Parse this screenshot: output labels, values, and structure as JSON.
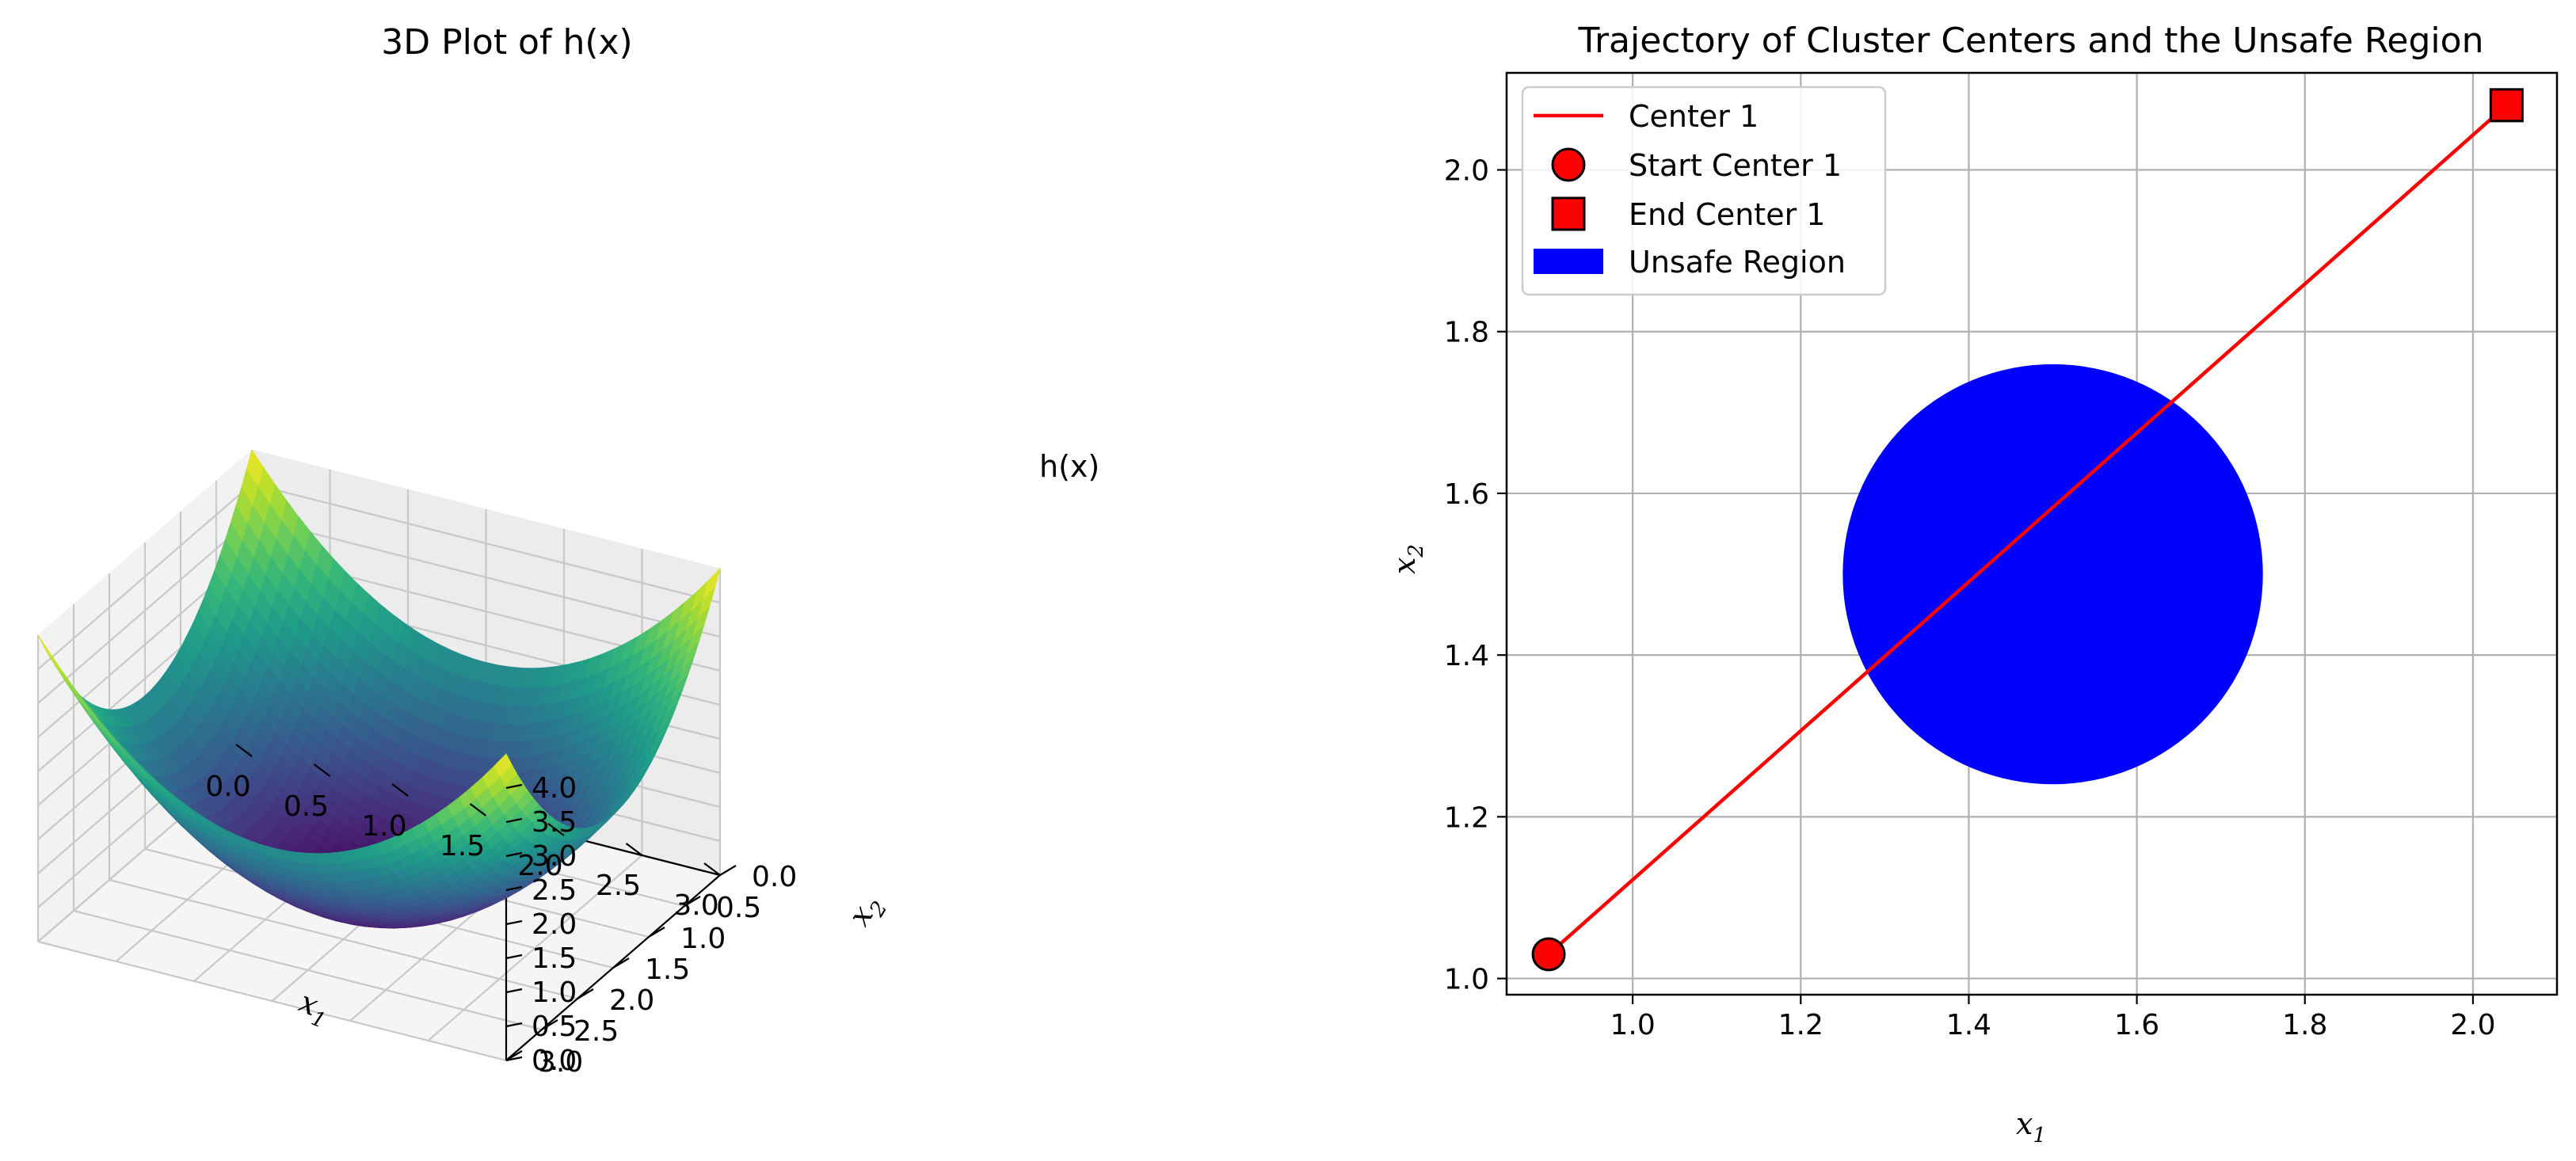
{
  "chart_data": [
    {
      "type": "surface",
      "title": "3D Plot of h(x)",
      "function": "(x1 - 1.5)^2 + (x2 - 1.5)^2",
      "x_ticks": [
        "0.0",
        "0.5",
        "1.0",
        "1.5",
        "2.0",
        "2.5",
        "3.0"
      ],
      "y_ticks": [
        "0.0",
        "0.5",
        "1.0",
        "1.5",
        "2.0",
        "2.5",
        "3.0"
      ],
      "z_ticks": [
        "0.0",
        "0.5",
        "1.0",
        "1.5",
        "2.0",
        "2.5",
        "3.0",
        "3.5",
        "4.0"
      ],
      "xlim": [
        0,
        3
      ],
      "ylim": [
        0,
        3
      ],
      "zlim": [
        0,
        4.5
      ],
      "xlabel_main": "x",
      "xlabel_sub": "1",
      "ylabel_main": "x",
      "ylabel_sub": "2",
      "zlabel": "h(x)",
      "colormap": "viridis",
      "grid": true
    },
    {
      "type": "line",
      "title": "Trajectory of Cluster Centers and the Unsafe Region",
      "xlabel_main": "x",
      "xlabel_sub": "1",
      "ylabel_main": "x",
      "ylabel_sub": "2",
      "xlim": [
        0.85,
        2.1
      ],
      "ylim": [
        0.98,
        2.12
      ],
      "x_ticks": [
        "1.0",
        "1.2",
        "1.4",
        "1.6",
        "1.8",
        "2.0"
      ],
      "y_ticks": [
        "1.0",
        "1.2",
        "1.4",
        "1.6",
        "1.8",
        "2.0"
      ],
      "grid": true,
      "legend_position": "top-left",
      "series": [
        {
          "name": "Center 1",
          "x": [
            0.9,
            2.04
          ],
          "y": [
            1.03,
            2.08
          ],
          "color": "#ff0000"
        }
      ],
      "start_marker": {
        "name": "Start Center 1",
        "x": 0.9,
        "y": 1.03,
        "shape": "circle",
        "color": "#ff0000"
      },
      "end_marker": {
        "name": "End Center 1",
        "x": 2.04,
        "y": 2.08,
        "shape": "square",
        "color": "#ff0000"
      },
      "unsafe_region": {
        "name": "Unsafe Region",
        "center": [
          1.5,
          1.5
        ],
        "radius": 0.25,
        "color": "#0000ff"
      }
    }
  ]
}
